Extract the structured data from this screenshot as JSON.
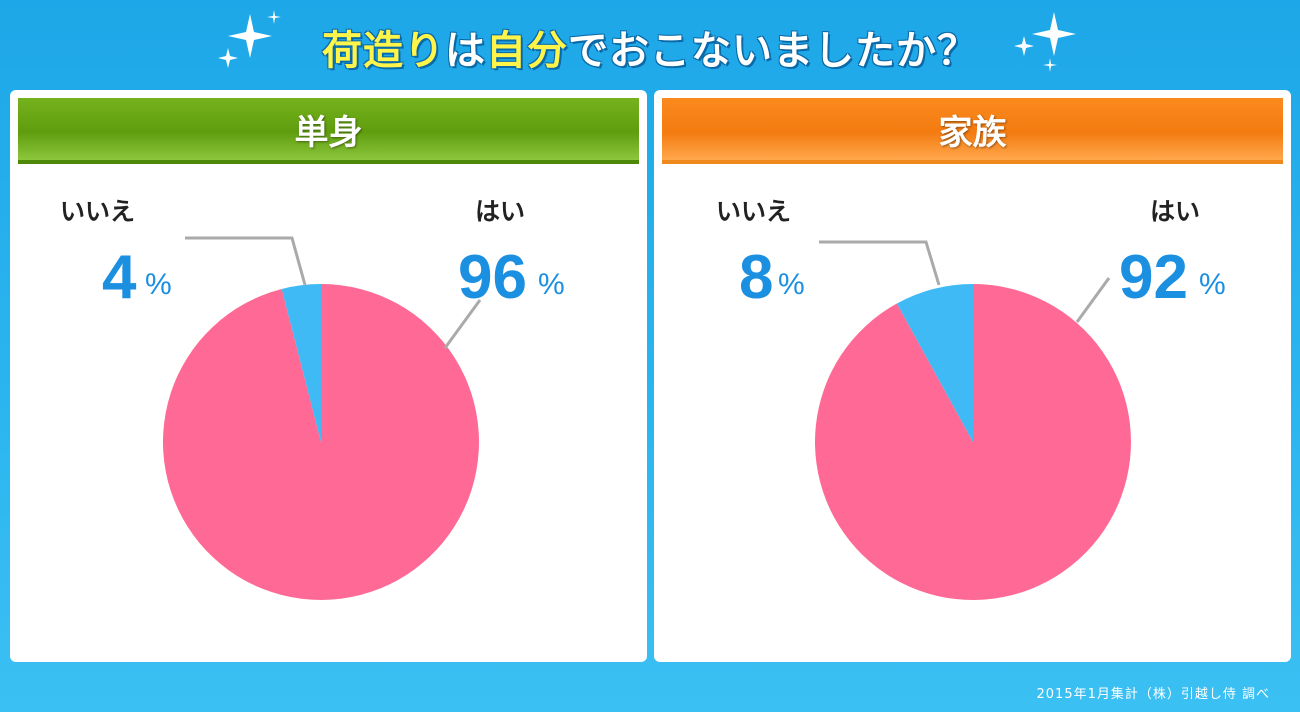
{
  "header": {
    "title_hl1": "荷造り",
    "title_mid1": "は",
    "title_hl2": "自分",
    "title_rest": "でおこないましたか？"
  },
  "footer": "2015年1月集計（株）引越し侍 調べ",
  "chart_data": [
    {
      "type": "pie",
      "title": "単身",
      "categories": [
        "はい",
        "いいえ"
      ],
      "values": [
        96,
        4
      ],
      "unit": "%",
      "colors": {
        "はい": "#ff6996",
        "いいえ": "#3fbaf5"
      },
      "band_color": "#6ea91a"
    },
    {
      "type": "pie",
      "title": "家族",
      "categories": [
        "はい",
        "いいえ"
      ],
      "values": [
        92,
        8
      ],
      "unit": "%",
      "colors": {
        "はい": "#ff6996",
        "いいえ": "#3fbaf5"
      },
      "band_color": "#f68a20"
    }
  ]
}
